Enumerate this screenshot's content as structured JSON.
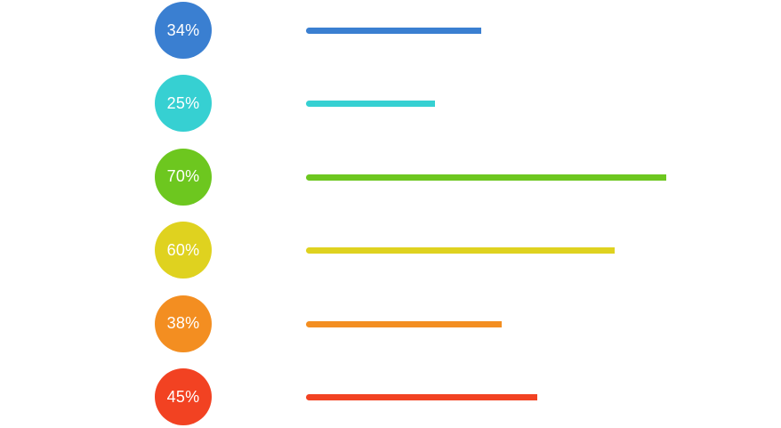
{
  "chart_data": {
    "type": "bar",
    "orientation": "horizontal",
    "xlim": [
      0,
      100
    ],
    "grid": false,
    "legend": "none",
    "items": [
      {
        "label": "34%",
        "value": 34,
        "color": "#3a7fd1"
      },
      {
        "label": "25%",
        "value": 25,
        "color": "#36d0d2"
      },
      {
        "label": "70%",
        "value": 70,
        "color": "#6dc71f"
      },
      {
        "label": "60%",
        "value": 60,
        "color": "#dfd21f"
      },
      {
        "label": "38%",
        "value": 38,
        "color": "#f38e21"
      },
      {
        "label": "45%",
        "value": 45,
        "color": "#f24222"
      }
    ]
  }
}
